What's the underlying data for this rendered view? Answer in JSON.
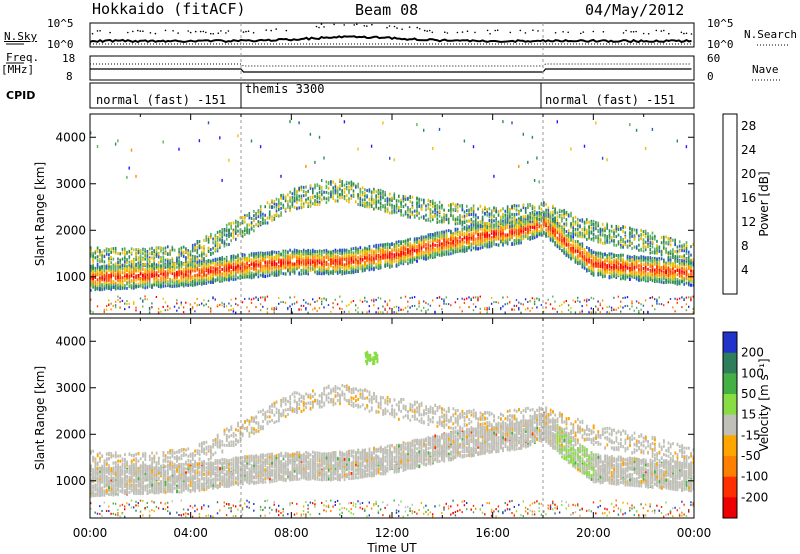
{
  "header": {
    "title": "Hokkaido (fitACF)",
    "beam": "Beam 08",
    "date": "04/May/2012"
  },
  "panels": {
    "nsky_label": "N.Sky",
    "nsky_tick_top": "10^5",
    "nsky_tick_bottom": "10^0",
    "nsearch_tick_top": "10^5",
    "nsearch_tick_bottom": "10^0",
    "nsearch_label": "N.Search",
    "freq_label_1": "Freq.",
    "freq_label_2": "[MHz]",
    "freq_tick_top": "18",
    "freq_tick_bottom": "8",
    "nave_tick_top": "60",
    "nave_tick_bottom": "0",
    "nave_label": "Nave",
    "cpid_label": "CPID",
    "cpid_segments": [
      "normal (fast) -151",
      "themis 3300",
      "normal (fast) -151"
    ]
  },
  "chart_data": [
    {
      "type": "heatmap",
      "title": "",
      "xlabel": "",
      "ylabel": "Slant Range [km]",
      "x_ticks": [
        "00:00",
        "04:00",
        "08:00",
        "12:00",
        "16:00",
        "20:00",
        "00:00"
      ],
      "xlim_hours": [
        0,
        24
      ],
      "y_ticks": [
        1000,
        2000,
        3000,
        4000
      ],
      "ylim": [
        200,
        4500
      ],
      "colorbar": {
        "label": "Power [dB]",
        "ticks": [
          4,
          8,
          12,
          16,
          20,
          24,
          28
        ],
        "range": [
          0,
          30
        ],
        "colors": [
          "#1a1aff",
          "#2d55c8",
          "#2e8b57",
          "#60b060",
          "#f0c000",
          "#ff8c00",
          "#ff4500",
          "#ff0000"
        ]
      },
      "echo_bands": [
        {
          "name": "main",
          "range_km": [
            [
              0,
              1000
            ],
            [
              2,
              1050
            ],
            [
              4,
              1100
            ],
            [
              6,
              1250
            ],
            [
              8,
              1350
            ],
            [
              10,
              1350
            ],
            [
              12,
              1500
            ],
            [
              14,
              1750
            ],
            [
              16,
              1950
            ],
            [
              17,
              2000
            ],
            [
              18,
              2200
            ],
            [
              19,
              1700
            ],
            [
              20,
              1300
            ],
            [
              22,
              1200
            ],
            [
              24,
              1100
            ]
          ],
          "power_db": 25
        },
        {
          "name": "upper",
          "range_km": [
            [
              0,
              1450
            ],
            [
              2,
              1400
            ],
            [
              4,
              1500
            ],
            [
              6,
              2100
            ],
            [
              8,
              2700
            ],
            [
              10,
              2900
            ],
            [
              12,
              2600
            ],
            [
              14,
              2400
            ],
            [
              16,
              2300
            ],
            [
              18,
              2400
            ],
            [
              20,
              2000
            ],
            [
              22,
              1800
            ],
            [
              24,
              1500
            ]
          ],
          "power_db": 12
        }
      ]
    },
    {
      "type": "heatmap",
      "title": "",
      "xlabel": "Time UT",
      "ylabel": "Slant Range [km]",
      "x_ticks": [
        "00:00",
        "04:00",
        "08:00",
        "12:00",
        "16:00",
        "20:00",
        "00:00"
      ],
      "xlim_hours": [
        0,
        24
      ],
      "y_ticks": [
        1000,
        2000,
        3000,
        4000
      ],
      "ylim": [
        200,
        4500
      ],
      "colorbar": {
        "label": "Velocity [m s-1]",
        "ticks": [
          200,
          100,
          50,
          15,
          -15,
          -50,
          -100,
          -200
        ],
        "range": [
          -250,
          250
        ],
        "colors": [
          "#2233cc",
          "#2e7d5b",
          "#44b044",
          "#88dd44",
          "#c0c0b8",
          "#ffa500",
          "#ff7f00",
          "#ff3000",
          "#ee0000"
        ]
      },
      "ground_scatter_color": "#c0c0b8"
    }
  ],
  "time_ticks": [
    "00:00",
    "04:00",
    "08:00",
    "12:00",
    "16:00",
    "20:00",
    "00:00"
  ],
  "time_label": "Time UT",
  "range_ticks": [
    "1000",
    "2000",
    "3000",
    "4000"
  ],
  "range_label": "Slant Range [km]",
  "power_ticks": [
    "4",
    "8",
    "12",
    "16",
    "20",
    "24",
    "28"
  ],
  "power_label": "Power [dB]",
  "velocity_ticks": [
    "200",
    "100",
    "50",
    "15",
    "-15",
    "-50",
    "-100",
    "-200"
  ],
  "velocity_label": "Velocity [m s⁻¹]"
}
